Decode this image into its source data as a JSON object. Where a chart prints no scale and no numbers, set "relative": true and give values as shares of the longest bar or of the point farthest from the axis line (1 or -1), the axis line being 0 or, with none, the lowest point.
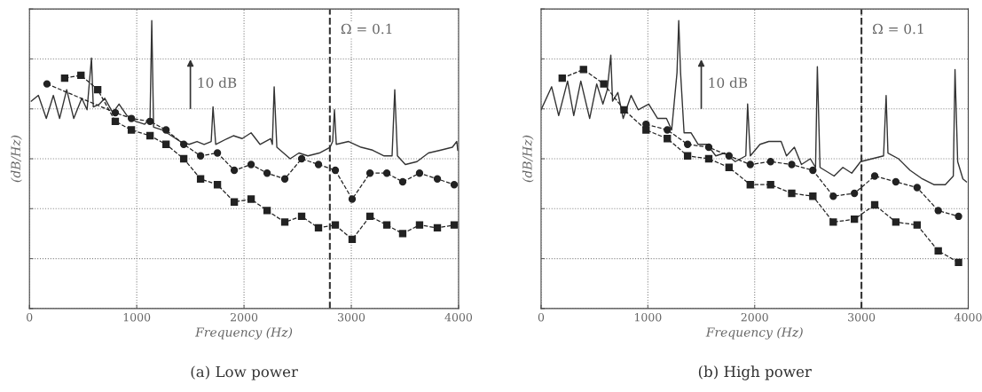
{
  "chart_data": [
    {
      "type": "line",
      "title": "(a) Low power",
      "xlabel": "Frequency (Hz)",
      "ylabel": "(dB/Hz)",
      "relative": true,
      "grid": true,
      "xlim": [
        0,
        4000
      ],
      "xticks": [
        0,
        1000,
        2000,
        3000,
        4000
      ],
      "ref_lines": [
        {
          "axis": "x",
          "value": 2800,
          "line_style": "dashed",
          "color": "#333333"
        }
      ],
      "annotations": [
        "10 dB",
        "Ω = 0.1"
      ],
      "series": [
        {
          "color": "#333333",
          "line_style": "solid",
          "marker": "none",
          "x": [
            17,
            83,
            157,
            223,
            281,
            347,
            413,
            488,
            537,
            578,
            595,
            653,
            702,
            777,
            835,
            909,
            992,
            1074,
            1124,
            1140,
            1157,
            1240,
            1322,
            1405,
            1488,
            1562,
            1628,
            1694,
            1711,
            1736,
            1843,
            1901,
            1983,
            2066,
            2149,
            2248,
            2264,
            2281,
            2306,
            2430,
            2512,
            2595,
            2702,
            2802,
            2826,
            2843,
            2860,
            2975,
            3091,
            3198,
            3306,
            3380,
            3405,
            3430,
            3504,
            3612,
            3719,
            3835,
            3942,
            3983,
            3992
          ],
          "values": [
            0.72,
            0.74,
            0.66,
            0.74,
            0.66,
            0.76,
            0.66,
            0.73,
            0.69,
            0.87,
            0.7,
            0.71,
            0.73,
            0.68,
            0.71,
            0.67,
            0.65,
            0.64,
            0.66,
            1,
            0.63,
            0.62,
            0.6,
            0.58,
            0.57,
            0.58,
            0.57,
            0.58,
            0.7,
            0.57,
            0.59,
            0.6,
            0.59,
            0.61,
            0.57,
            0.59,
            0.57,
            0.77,
            0.56,
            0.52,
            0.54,
            0.53,
            0.54,
            0.56,
            0.58,
            0.69,
            0.57,
            0.58,
            0.56,
            0.55,
            0.53,
            0.53,
            0.76,
            0.53,
            0.5,
            0.51,
            0.54,
            0.55,
            0.56,
            0.58,
            0.55
          ]
        },
        {
          "color": "#222222",
          "line_style": "dashed",
          "marker": "circle",
          "x": [
            163,
            800,
            950,
            1124,
            1273,
            1438,
            1595,
            1752,
            1909,
            2066,
            2215,
            2380,
            2537,
            2694,
            2851,
            3008,
            3174,
            3331,
            3479,
            3636,
            3802,
            3959
          ],
          "values": [
            0.78,
            0.68,
            0.66,
            0.65,
            0.62,
            0.57,
            0.53,
            0.54,
            0.48,
            0.5,
            0.47,
            0.45,
            0.52,
            0.5,
            0.48,
            0.38,
            0.47,
            0.47,
            0.44,
            0.47,
            0.45,
            0.43
          ]
        },
        {
          "color": "#222222",
          "line_style": "dashed",
          "marker": "square",
          "x": [
            328,
            480,
            636,
            800,
            950,
            1124,
            1273,
            1438,
            1595,
            1752,
            1909,
            2066,
            2215,
            2380,
            2537,
            2694,
            2851,
            3008,
            3174,
            3331,
            3479,
            3636,
            3802,
            3959
          ],
          "values": [
            0.8,
            0.81,
            0.76,
            0.65,
            0.62,
            0.6,
            0.57,
            0.52,
            0.45,
            0.43,
            0.37,
            0.38,
            0.34,
            0.3,
            0.32,
            0.28,
            0.29,
            0.24,
            0.32,
            0.29,
            0.26,
            0.29,
            0.28,
            0.29
          ]
        }
      ]
    },
    {
      "type": "line",
      "title": "(b) High power",
      "xlabel": "Frequency (Hz)",
      "ylabel": "(dB/Hz)",
      "relative": true,
      "grid": true,
      "xlim": [
        0,
        4000
      ],
      "xticks": [
        0,
        1000,
        2000,
        3000,
        4000
      ],
      "ref_lines": [
        {
          "axis": "x",
          "value": 3000,
          "line_style": "dashed",
          "color": "#333333"
        }
      ],
      "annotations": [
        "10 dB",
        "Ω = 0.1"
      ],
      "series": [
        {
          "color": "#333333",
          "line_style": "solid",
          "marker": "none",
          "x": [
            0,
            99,
            165,
            248,
            306,
            372,
            455,
            521,
            579,
            620,
            653,
            669,
            719,
            769,
            843,
            909,
            1008,
            1091,
            1174,
            1223,
            1273,
            1289,
            1306,
            1339,
            1405,
            1471,
            1554,
            1636,
            1719,
            1818,
            1917,
            1934,
            1959,
            2050,
            2132,
            2248,
            2298,
            2372,
            2438,
            2521,
            2570,
            2587,
            2612,
            2744,
            2826,
            2909,
            2992,
            3099,
            3207,
            3231,
            3248,
            3347,
            3455,
            3570,
            3678,
            3785,
            3860,
            3876,
            3901,
            3950,
            3983
          ],
          "values": [
            0.69,
            0.77,
            0.67,
            0.79,
            0.67,
            0.79,
            0.66,
            0.78,
            0.71,
            0.76,
            0.88,
            0.72,
            0.75,
            0.66,
            0.74,
            0.69,
            0.71,
            0.66,
            0.66,
            0.62,
            0.82,
            1,
            0.82,
            0.61,
            0.61,
            0.57,
            0.57,
            0.53,
            0.54,
            0.51,
            0.53,
            0.71,
            0.53,
            0.57,
            0.58,
            0.58,
            0.53,
            0.56,
            0.5,
            0.52,
            0.49,
            0.84,
            0.49,
            0.46,
            0.49,
            0.47,
            0.51,
            0.52,
            0.53,
            0.74,
            0.54,
            0.52,
            0.48,
            0.45,
            0.43,
            0.43,
            0.46,
            0.83,
            0.51,
            0.45,
            0.44
          ]
        },
        {
          "color": "#222222",
          "line_style": "dashed",
          "marker": "circle",
          "x": [
            983,
            1182,
            1372,
            1570,
            1760,
            1959,
            2149,
            2347,
            2545,
            2736,
            2934,
            3124,
            3322,
            3521,
            3719,
            3909
          ],
          "values": [
            0.64,
            0.62,
            0.57,
            0.56,
            0.53,
            0.5,
            0.51,
            0.5,
            0.48,
            0.39,
            0.4,
            0.46,
            0.44,
            0.42,
            0.34,
            0.32
          ]
        },
        {
          "color": "#222222",
          "line_style": "dashed",
          "marker": "square",
          "x": [
            198,
            397,
            587,
            777,
            983,
            1182,
            1372,
            1570,
            1760,
            1959,
            2149,
            2347,
            2545,
            2736,
            2934,
            3124,
            3322,
            3521,
            3719,
            3909
          ],
          "values": [
            0.8,
            0.83,
            0.78,
            0.69,
            0.62,
            0.59,
            0.53,
            0.52,
            0.49,
            0.43,
            0.43,
            0.4,
            0.39,
            0.3,
            0.31,
            0.36,
            0.3,
            0.29,
            0.2,
            0.16
          ]
        }
      ]
    }
  ]
}
